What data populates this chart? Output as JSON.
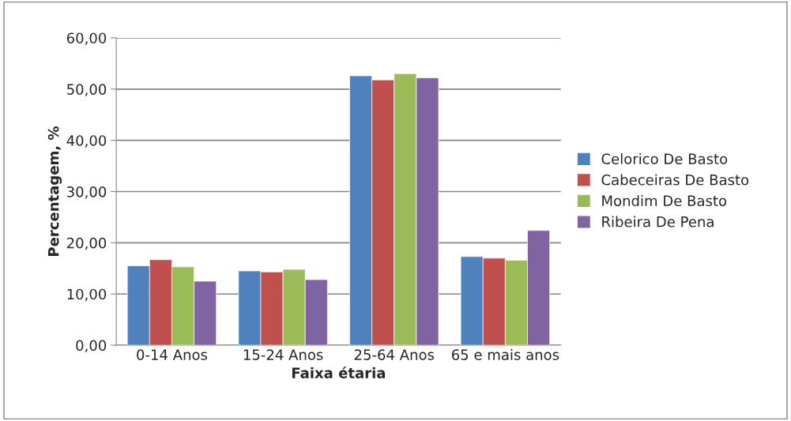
{
  "chart_data": {
    "type": "bar",
    "xlabel": "Faixa étaria",
    "ylabel": "Percentagem, %",
    "categories": [
      "0-14 Anos",
      "15-24 Anos",
      "25-64 Anos",
      "65 e mais anos"
    ],
    "series": [
      {
        "name": "Celorico De Basto",
        "color": "#4f81bd",
        "values": [
          15.5,
          14.5,
          52.6,
          17.3
        ]
      },
      {
        "name": "Cabeceiras De Basto",
        "color": "#c0504d",
        "values": [
          16.7,
          14.3,
          51.8,
          17.0
        ]
      },
      {
        "name": "Mondim De Basto",
        "color": "#9bbb59",
        "values": [
          15.3,
          14.8,
          53.0,
          16.6
        ]
      },
      {
        "name": "Ribeira De Pena",
        "color": "#8064a2",
        "values": [
          12.5,
          12.8,
          52.2,
          22.4
        ]
      }
    ],
    "ylim": [
      0,
      60
    ],
    "yticks": [
      {
        "value": 0,
        "label": "0,00"
      },
      {
        "value": 10,
        "label": "10,00"
      },
      {
        "value": 20,
        "label": "20,00"
      },
      {
        "value": 30,
        "label": "30,00"
      },
      {
        "value": 40,
        "label": "40,00"
      },
      {
        "value": 50,
        "label": "50,00"
      },
      {
        "value": 60,
        "label": "60,00"
      }
    ],
    "grid": "y",
    "legend": "right"
  }
}
